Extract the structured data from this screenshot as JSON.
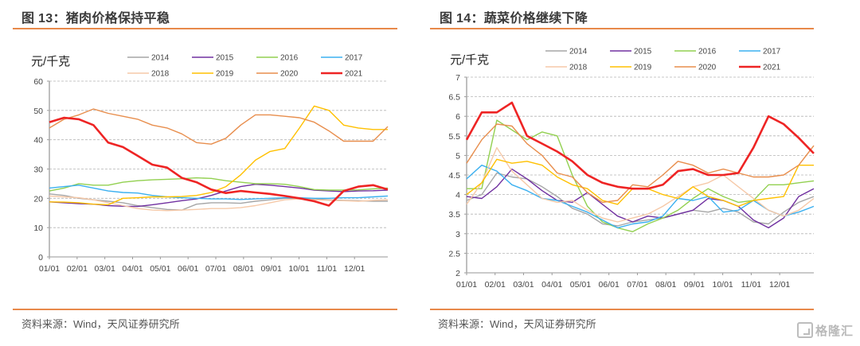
{
  "series_colors": {
    "2014": "#a6a6a6",
    "2015": "#7030a0",
    "2016": "#92d050",
    "2017": "#3bb0f0",
    "2018": "#f6c9a8",
    "2019": "#ffc000",
    "2020": "#e88e4d",
    "2021": "#ee2424"
  },
  "chart_data": [
    {
      "type": "line",
      "title": "图 13：猪肉价格保持平稳",
      "ylabel": "元/千克",
      "xlabel": "",
      "source": "资料来源：Wind，天风证券研究所",
      "ylim": [
        0,
        60
      ],
      "yticks": [
        0,
        10,
        20,
        30,
        40,
        50,
        60
      ],
      "ytick_labels": [
        "0",
        "10",
        "20",
        "30",
        "40",
        "50",
        "60"
      ],
      "xtick_labels": [
        "01/01",
        "02/01",
        "03/01",
        "04/01",
        "05/01",
        "06/01",
        "07/01",
        "08/01",
        "09/01",
        "10/01",
        "11/01",
        "12/01"
      ],
      "grid": "horizontal-dashed",
      "legend": {
        "position": "top",
        "rows": [
          [
            "2014",
            "2015",
            "2016",
            "2017"
          ],
          [
            "2018",
            "2019",
            "2020",
            "2021"
          ]
        ]
      },
      "x_points": 24,
      "series": [
        {
          "name": "2014",
          "values": [
            21.5,
            21,
            20,
            19.5,
            19,
            18.5,
            17.5,
            16.8,
            16.2,
            16,
            18,
            18.5,
            18.5,
            18.3,
            19,
            19.5,
            20,
            20,
            19.8,
            19.5,
            19.3,
            19.2,
            19,
            19
          ]
        },
        {
          "name": "2015",
          "values": [
            18.8,
            18.5,
            18.2,
            18,
            17.5,
            17.3,
            17.2,
            17.8,
            18.5,
            19.2,
            19.8,
            21,
            22.5,
            24,
            24.8,
            24.5,
            24,
            23.5,
            22.8,
            22.5,
            22.3,
            22.5,
            22.6,
            22.8
          ]
        },
        {
          "name": "2016",
          "values": [
            22.5,
            23.5,
            25,
            24.5,
            24.5,
            25.5,
            26,
            26.3,
            26.5,
            26.7,
            27,
            26.8,
            26,
            25.5,
            25,
            25,
            24.8,
            24,
            23,
            22.8,
            22.8,
            22.9,
            23.2,
            23.5
          ]
        },
        {
          "name": "2017",
          "values": [
            23.5,
            24,
            24.5,
            23.5,
            22.5,
            22,
            21.8,
            21,
            20.5,
            20.2,
            20,
            19.8,
            19.8,
            19.6,
            19.8,
            20,
            20.2,
            20.2,
            20,
            20,
            20.2,
            20.2,
            20.5,
            20.8
          ]
        },
        {
          "name": "2018",
          "values": [
            20.8,
            20.5,
            20.2,
            19.5,
            18.5,
            17.5,
            16.5,
            16,
            15.8,
            16,
            16.2,
            16.5,
            16.5,
            16.8,
            17.5,
            18.5,
            19.5,
            19.8,
            19.5,
            19.3,
            19.2,
            19,
            19.3,
            19.5
          ]
        },
        {
          "name": "2019",
          "values": [
            18.8,
            18.7,
            18.5,
            18,
            17.8,
            20,
            20.2,
            20.5,
            20.5,
            20.6,
            21,
            22,
            24,
            28,
            33,
            36,
            37,
            44,
            51.5,
            50,
            45,
            44,
            43.5,
            43.5
          ]
        },
        {
          "name": "2020",
          "values": [
            44,
            47,
            48.5,
            50.5,
            49,
            48,
            47,
            45,
            44,
            42,
            39,
            38.5,
            40.5,
            45,
            48.5,
            48.5,
            48,
            47.5,
            46,
            43,
            39.5,
            39.5,
            39.5,
            44.5
          ]
        },
        {
          "name": "2021",
          "values": [
            46,
            47.5,
            47,
            45,
            39,
            37.5,
            34.5,
            31.5,
            30.5,
            27,
            25.5,
            23,
            21.8,
            22.5,
            22,
            21.5,
            20.8,
            20,
            19,
            17.5,
            22.5,
            24,
            24.5,
            23
          ]
        }
      ]
    },
    {
      "type": "line",
      "title": "图 14：蔬菜价格继续下降",
      "ylabel": "元/千克",
      "xlabel": "",
      "source": "资料来源：Wind，天风证券研究所",
      "ylim": [
        2,
        7
      ],
      "yticks": [
        2,
        2.5,
        3,
        3.5,
        4,
        4.5,
        5,
        5.5,
        6,
        6.5,
        7
      ],
      "ytick_labels": [
        "2",
        "2.5",
        "3",
        "3.5",
        "4",
        "4.5",
        "5",
        "5.5",
        "6",
        "6.5",
        "7"
      ],
      "xtick_labels": [
        "01/01",
        "02/01",
        "03/01",
        "04/01",
        "05/01",
        "06/01",
        "07/01",
        "08/01",
        "09/01",
        "10/01",
        "11/01",
        "12/01"
      ],
      "grid": "horizontal-dashed",
      "legend": {
        "position": "top",
        "rows": [
          [
            "2014",
            "2015",
            "2016",
            "2017"
          ],
          [
            "2018",
            "2019",
            "2020",
            "2021"
          ]
        ]
      },
      "x_points": 24,
      "series": [
        {
          "name": "2014",
          "values": [
            3.85,
            4.0,
            4.55,
            4.45,
            4.4,
            4.2,
            3.95,
            3.65,
            3.5,
            3.25,
            3.2,
            3.3,
            3.35,
            3.4,
            3.5,
            3.6,
            3.55,
            3.65,
            3.55,
            3.3,
            3.25,
            3.55,
            3.8,
            3.95
          ]
        },
        {
          "name": "2015",
          "values": [
            3.95,
            3.9,
            4.2,
            4.65,
            4.4,
            4.1,
            3.85,
            3.8,
            4.05,
            3.75,
            3.45,
            3.3,
            3.45,
            3.4,
            3.5,
            3.6,
            3.9,
            3.85,
            3.7,
            3.35,
            3.15,
            3.4,
            3.95,
            4.15
          ]
        },
        {
          "name": "2016",
          "values": [
            4.15,
            4.15,
            5.9,
            5.65,
            5.4,
            5.6,
            5.5,
            4.5,
            3.7,
            3.3,
            3.15,
            3.05,
            3.25,
            3.4,
            3.6,
            3.9,
            4.15,
            3.95,
            3.8,
            3.85,
            4.25,
            4.25,
            4.3,
            4.35
          ]
        },
        {
          "name": "2017",
          "values": [
            4.4,
            4.75,
            4.6,
            4.25,
            4.1,
            3.9,
            3.85,
            3.7,
            3.55,
            3.35,
            3.15,
            3.25,
            3.3,
            3.45,
            3.9,
            3.85,
            3.95,
            3.55,
            3.6,
            3.85,
            3.6,
            3.45,
            3.55,
            3.7
          ]
        },
        {
          "name": "2018",
          "values": [
            3.75,
            4.3,
            5.2,
            4.6,
            4.25,
            3.9,
            3.8,
            3.85,
            3.6,
            3.4,
            3.3,
            3.4,
            3.5,
            3.7,
            3.95,
            4.2,
            4.3,
            4.5,
            4.2,
            3.9,
            3.6,
            3.45,
            3.6,
            3.9
          ]
        },
        {
          "name": "2019",
          "values": [
            4.0,
            4.3,
            4.9,
            4.8,
            4.85,
            4.75,
            4.45,
            4.25,
            4.15,
            3.85,
            3.75,
            4.15,
            4.15,
            4.0,
            3.9,
            4.2,
            3.95,
            3.85,
            3.7,
            3.85,
            3.9,
            3.95,
            4.75,
            4.75
          ]
        },
        {
          "name": "2020",
          "values": [
            4.8,
            5.4,
            5.8,
            5.75,
            5.3,
            5.0,
            4.55,
            4.45,
            4.05,
            3.8,
            3.85,
            4.25,
            4.2,
            4.5,
            4.85,
            4.75,
            4.55,
            4.65,
            4.55,
            4.45,
            4.45,
            4.5,
            4.75,
            5.25
          ]
        },
        {
          "name": "2021",
          "values": [
            5.4,
            6.1,
            6.1,
            6.35,
            5.5,
            5.3,
            5.1,
            4.85,
            4.5,
            4.3,
            4.2,
            4.15,
            4.15,
            4.25,
            4.6,
            4.65,
            4.5,
            4.5,
            4.55,
            5.2,
            6.0,
            5.8,
            5.45,
            5.05
          ]
        }
      ]
    }
  ],
  "watermark": "格隆汇"
}
